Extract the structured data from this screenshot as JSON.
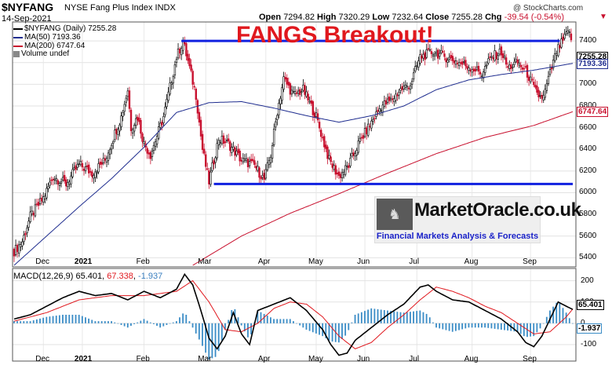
{
  "header": {
    "symbol": "$NYFANG",
    "name": "NYSE Fang Plus Index  INDX",
    "date": "14-Sep-2021",
    "copyright": "@ StockCharts.com",
    "open_label": "Open",
    "open": "7294.82",
    "high_label": "High",
    "high": "7320.29",
    "low_label": "Low",
    "low": "7232.64",
    "close_label": "Close",
    "close": "7255.28",
    "chg_label": "Chg",
    "chg": "-39.54 (-0.54%)",
    "arrow": "▼"
  },
  "legend": {
    "price": "$NYFANG (Daily) 7255.28",
    "ma50": "MA(50) 7193.36",
    "ma200": "MA(200) 6747.64",
    "volume": "Volume undef"
  },
  "annotation": {
    "headline": "FANGS Breakout!",
    "brand": "MarketOracle.co.uk",
    "tagline": "Financial Markets Analysis & Forecasts"
  },
  "colors": {
    "up": "#000000",
    "down": "#c8102e",
    "ma50": "#1f2d8f",
    "ma200": "#c8102e",
    "trendline": "#1020e0",
    "headline": "#e0181e",
    "histogram": "#3a8cc6",
    "signal": "#e0181e"
  },
  "chart_data": [
    {
      "type": "line",
      "title": "$NYFANG (Daily) 7255.28",
      "y_ticks": [
        5400,
        5600,
        5800,
        6000,
        6200,
        6400,
        6600,
        6800,
        7000,
        7200,
        7400
      ],
      "ylim": [
        5330,
        7560
      ],
      "x_month_labels": [
        "Dec",
        "2021",
        "Feb",
        "Mar",
        "Apr",
        "May",
        "Jun",
        "Jul",
        "Aug",
        "Sep"
      ],
      "grid": true,
      "price_labels": {
        "close": "7255.28",
        "ma50": "7193.36",
        "ma200": "6747.64"
      },
      "price_anchors": {
        "x": [
          0,
          5,
          10,
          18,
          24,
          32,
          40,
          48,
          56,
          62,
          66,
          70,
          72,
          76,
          80,
          84,
          92,
          100,
          104,
          108,
          112,
          116,
          120,
          126,
          132,
          140,
          148,
          154,
          158,
          162,
          166,
          172,
          178,
          186,
          194,
          200,
          206,
          212,
          216,
          220,
          226,
          232,
          238,
          244,
          250,
          258,
          266,
          274,
          282,
          288,
          294,
          300,
          304,
          310,
          316,
          322,
          326,
          330,
          334,
          338,
          342,
          344
        ],
        "close": [
          5460,
          5550,
          5780,
          5950,
          6150,
          6080,
          6260,
          6180,
          6300,
          6550,
          6700,
          6950,
          6600,
          6700,
          6450,
          6350,
          6700,
          7250,
          7400,
          7150,
          6900,
          6400,
          6100,
          6500,
          6450,
          6300,
          6250,
          6120,
          6350,
          6750,
          7050,
          6900,
          6950,
          6700,
          6300,
          6150,
          6250,
          6450,
          6550,
          6650,
          6800,
          6850,
          6950,
          7000,
          7250,
          7300,
          7250,
          7200,
          7150,
          7100,
          7250,
          7300,
          7150,
          7200,
          7100,
          6900,
          6880,
          7100,
          7300,
          7400,
          7500,
          7255
        ]
      },
      "ma50_anchors": {
        "x": [
          0,
          20,
          40,
          60,
          80,
          100,
          120,
          140,
          160,
          180,
          200,
          220,
          240,
          260,
          280,
          300,
          320,
          344
        ],
        "value": [
          5330,
          5600,
          5870,
          6130,
          6420,
          6740,
          6830,
          6840,
          6780,
          6710,
          6650,
          6710,
          6800,
          6950,
          7040,
          7090,
          7130,
          7193
        ]
      },
      "ma200_anchors": {
        "x": [
          110,
          140,
          170,
          200,
          230,
          260,
          290,
          320,
          344
        ],
        "value": [
          5330,
          5600,
          5810,
          5990,
          6180,
          6360,
          6510,
          6620,
          6747
        ]
      },
      "trendlines": [
        {
          "x": [
            103,
            336
          ],
          "value": [
            7400,
            7400
          ]
        },
        {
          "x": [
            123,
            344
          ],
          "value": [
            6080,
            6080
          ]
        }
      ],
      "candles": 344
    },
    {
      "type": "line",
      "title": "MACD(12,26,9) 65.401, 67.338, -1.937",
      "series_names": [
        "MACD",
        "Signal",
        "Histogram"
      ],
      "values": {
        "macd": "65.401",
        "signal": "67.338",
        "histogram": "-1.937"
      },
      "y_ticks": [
        -100,
        0,
        100,
        200
      ],
      "ylim": [
        -170,
        250
      ],
      "x_month_labels": [
        "Dec",
        "2021",
        "Feb",
        "Mar",
        "Apr",
        "May",
        "Jun",
        "Jul",
        "Aug",
        "Sep"
      ],
      "macd_anchors": {
        "x": [
          0,
          10,
          20,
          30,
          40,
          50,
          60,
          70,
          80,
          90,
          100,
          105,
          110,
          115,
          120,
          125,
          130,
          135,
          140,
          145,
          150,
          160,
          170,
          180,
          190,
          195,
          200,
          205,
          210,
          220,
          230,
          240,
          250,
          255,
          260,
          270,
          280,
          290,
          300,
          310,
          315,
          320,
          325,
          330,
          335,
          340,
          344
        ],
        "value": [
          20,
          40,
          80,
          120,
          150,
          130,
          140,
          110,
          150,
          120,
          160,
          230,
          180,
          60,
          -70,
          -120,
          -60,
          50,
          -50,
          -100,
          60,
          90,
          120,
          60,
          -30,
          -100,
          -150,
          -140,
          -80,
          -20,
          40,
          90,
          170,
          180,
          150,
          110,
          100,
          60,
          20,
          -40,
          -90,
          -110,
          -60,
          20,
          100,
          80,
          65
        ]
      },
      "signal_anchors": {
        "x": [
          0,
          20,
          40,
          60,
          80,
          100,
          110,
          120,
          130,
          140,
          150,
          160,
          170,
          180,
          190,
          200,
          210,
          220,
          230,
          240,
          250,
          260,
          270,
          280,
          290,
          300,
          310,
          320,
          330,
          340,
          344
        ],
        "value": [
          10,
          50,
          110,
          130,
          130,
          150,
          200,
          100,
          -30,
          -40,
          0,
          70,
          100,
          90,
          30,
          -60,
          -120,
          -90,
          -20,
          40,
          110,
          170,
          150,
          120,
          80,
          50,
          0,
          -50,
          -40,
          30,
          67
        ]
      }
    }
  ]
}
